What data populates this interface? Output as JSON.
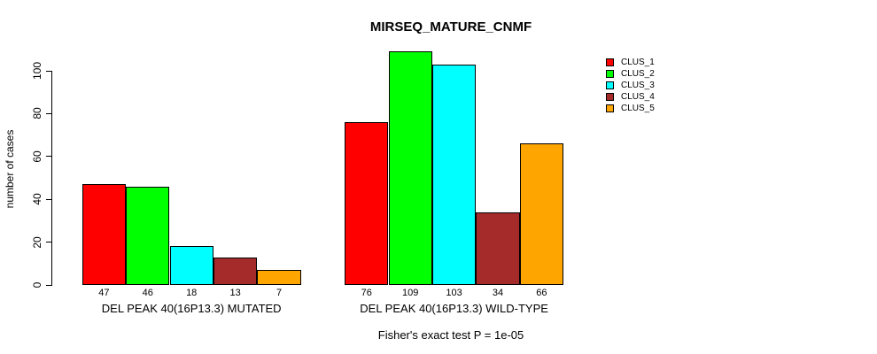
{
  "chart_data": {
    "type": "bar",
    "title": "MIRSEQ_MATURE_CNMF",
    "ylabel": "number of cases",
    "footnote": "Fisher's exact test P = 1e-05",
    "ylim": [
      0,
      100
    ],
    "yticks": [
      0,
      20,
      40,
      60,
      80,
      100
    ],
    "grid": false,
    "legend_position": "right-outside",
    "bar_value_labels_shown": true,
    "categories": [
      "DEL PEAK 40(16P13.3) MUTATED",
      "DEL PEAK 40(16P13.3) WILD-TYPE"
    ],
    "series": [
      {
        "name": "CLUS_1",
        "color": "#FF0000",
        "values": [
          47,
          76
        ]
      },
      {
        "name": "CLUS_2",
        "color": "#00FF00",
        "values": [
          46,
          109
        ]
      },
      {
        "name": "CLUS_3",
        "color": "#00FFFF",
        "values": [
          18,
          103
        ]
      },
      {
        "name": "CLUS_4",
        "color": "#A52A2A",
        "values": [
          13,
          34
        ]
      },
      {
        "name": "CLUS_5",
        "color": "#FFA500",
        "values": [
          7,
          66
        ]
      }
    ]
  }
}
